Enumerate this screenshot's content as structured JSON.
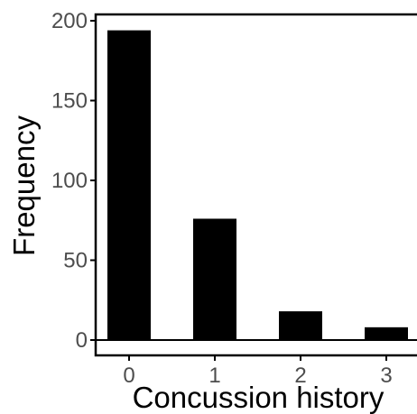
{
  "chart_data": {
    "type": "bar",
    "title": "",
    "xlabel": "Concussion history",
    "ylabel": "Frequency",
    "categories": [
      "0",
      "1",
      "2",
      "3"
    ],
    "values": [
      194,
      76,
      18,
      8
    ],
    "ylim": [
      0,
      200
    ],
    "yticks": [
      "0",
      "50",
      "100",
      "150",
      "200"
    ],
    "grid": false,
    "bar_color": "#000000",
    "axis_color": "#000000",
    "tick_label_color": "#4d4d4d"
  }
}
